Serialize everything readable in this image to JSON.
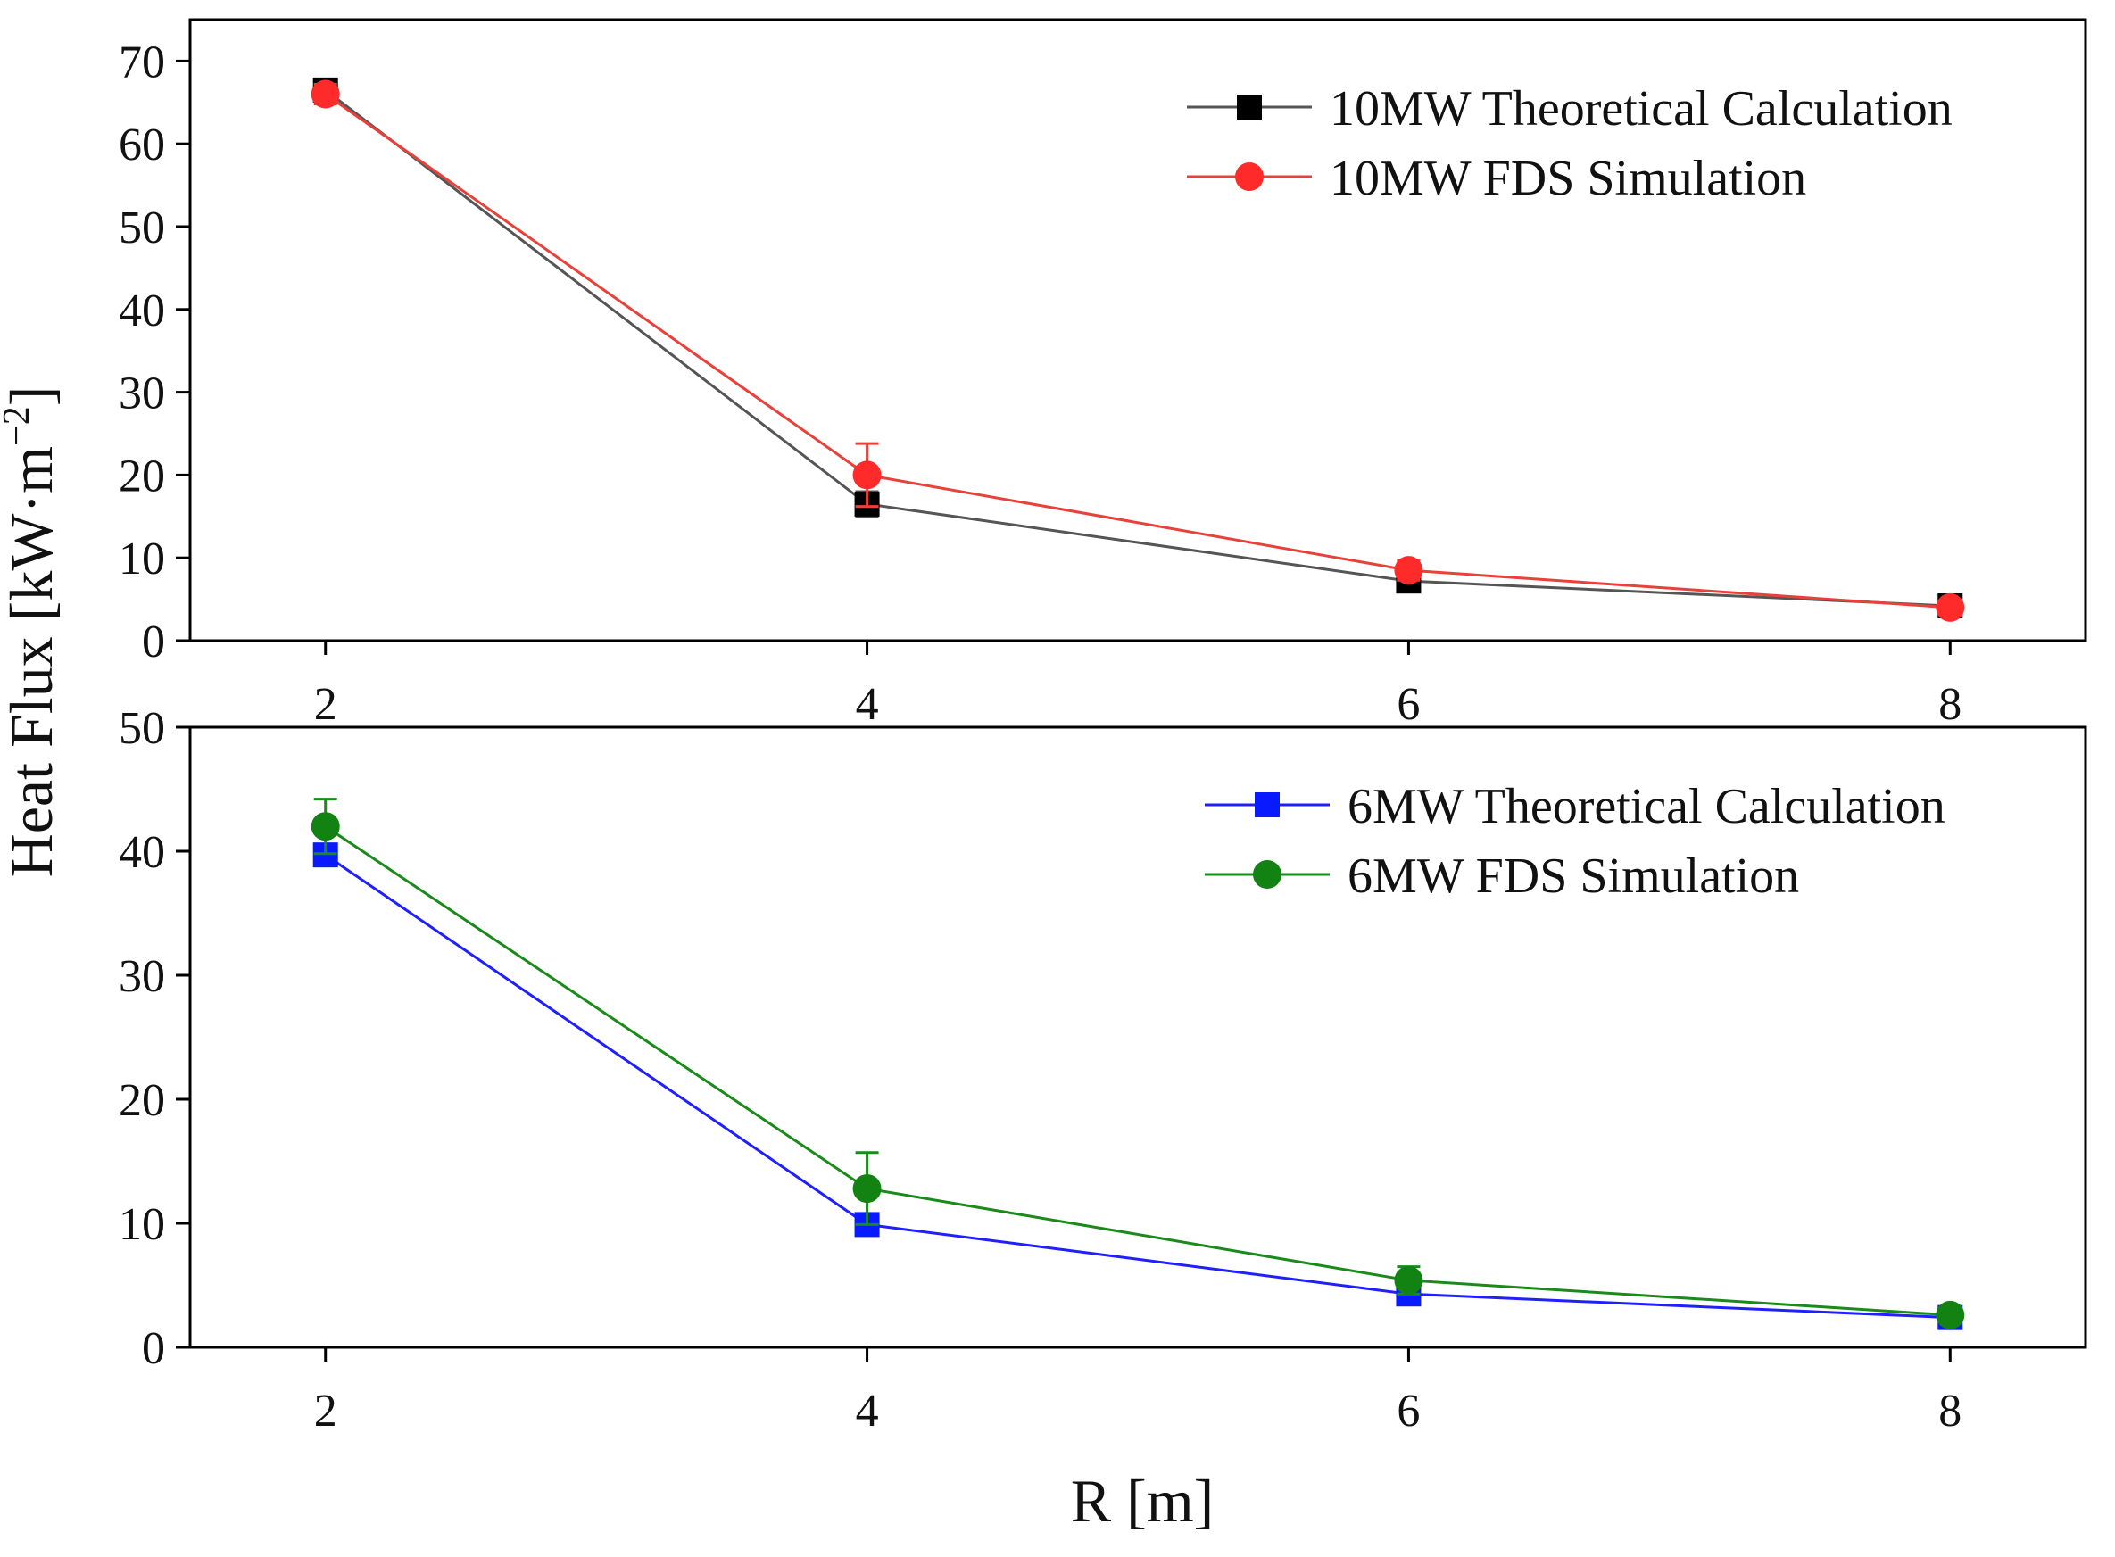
{
  "figure": {
    "ylabel": "Heat Flux [kW·m",
    "ylabel_sup": "−2",
    "ylabel_close": "]",
    "xlabel": "R [m]"
  },
  "chart_data": [
    {
      "type": "line",
      "x": [
        2,
        4,
        6,
        8
      ],
      "xlim": [
        1.5,
        8.5
      ],
      "ylim": [
        0,
        75
      ],
      "xticks": [
        "2",
        "4",
        "6",
        "8"
      ],
      "yticks": [
        "0",
        "10",
        "20",
        "30",
        "40",
        "50",
        "60",
        "70"
      ],
      "legend_position": "top-right",
      "series": [
        {
          "name": "10MW Theoretical Calculation",
          "marker": "square",
          "line_color": "#555555",
          "marker_color": "#000000",
          "values": [
            66.5,
            16.5,
            7.2,
            4.2
          ],
          "error": [
            1.0,
            1.5,
            0.8,
            0.5
          ]
        },
        {
          "name": "10MW FDS Simulation",
          "marker": "circle",
          "line_color": "#e8413a",
          "marker_color": "#ff2a2a",
          "values": [
            66.0,
            20.0,
            8.5,
            4.0
          ],
          "error": [
            1.2,
            3.8,
            1.2,
            0.6
          ]
        }
      ]
    },
    {
      "type": "line",
      "x": [
        2,
        4,
        6,
        8
      ],
      "xlim": [
        1.5,
        8.5
      ],
      "ylim": [
        0,
        50
      ],
      "xticks": [
        "2",
        "4",
        "6",
        "8"
      ],
      "yticks": [
        "0",
        "10",
        "20",
        "30",
        "40",
        "50"
      ],
      "legend_position": "top-right",
      "series": [
        {
          "name": "6MW Theoretical Calculation",
          "marker": "square",
          "line_color": "#1f1fff",
          "marker_color": "#0a1aff",
          "values": [
            39.7,
            9.9,
            4.3,
            2.4
          ],
          "error": [
            0.8,
            0.8,
            0.5,
            0.3
          ]
        },
        {
          "name": "6MW FDS Simulation",
          "marker": "circle",
          "line_color": "#1a8a1a",
          "marker_color": "#128212",
          "values": [
            42.0,
            12.8,
            5.4,
            2.6
          ],
          "error": [
            2.2,
            2.9,
            1.1,
            0.4
          ]
        }
      ]
    }
  ]
}
